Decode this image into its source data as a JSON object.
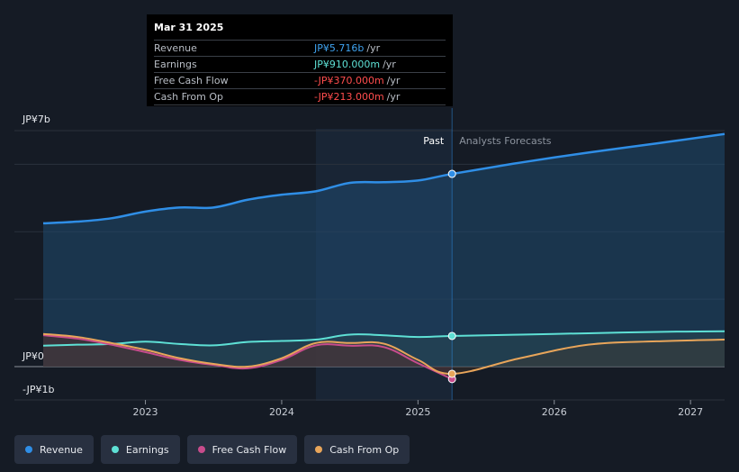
{
  "tooltip": {
    "date": "Mar 31 2025",
    "rows": [
      {
        "label": "Revenue",
        "value": "JP¥5.716b",
        "unit": "/yr",
        "color": "#3fa3f0"
      },
      {
        "label": "Earnings",
        "value": "JP¥910.000m",
        "unit": "/yr",
        "color": "#5ee0d5"
      },
      {
        "label": "Free Cash Flow",
        "value": "-JP¥370.000m",
        "unit": "/yr",
        "color": "#ff4d4d"
      },
      {
        "label": "Cash From Op",
        "value": "-JP¥213.000m",
        "unit": "/yr",
        "color": "#ff4d4d"
      }
    ]
  },
  "legend": [
    {
      "label": "Revenue",
      "color": "#2f8ee6"
    },
    {
      "label": "Earnings",
      "color": "#5ee0d5"
    },
    {
      "label": "Free Cash Flow",
      "color": "#c84c8c"
    },
    {
      "label": "Cash From Op",
      "color": "#e8a55a"
    }
  ],
  "chart_data": {
    "type": "line",
    "title": "",
    "units": "JP¥ billions",
    "ylim": [
      -1,
      7
    ],
    "y_tick_labels": [
      {
        "value": 7,
        "label": "JP¥7b"
      },
      {
        "value": 0,
        "label": "JP¥0"
      },
      {
        "value": -1,
        "label": "-JP¥1b"
      }
    ],
    "x_range": [
      2022.25,
      2027.25
    ],
    "x_ticks": [
      2023,
      2024,
      2025,
      2026,
      2027
    ],
    "past_label": "Past",
    "forecast_label": "Analysts Forecasts",
    "past_start": 2024.25,
    "divider_x": 2025.25,
    "series": [
      {
        "name": "Revenue",
        "color": "#2f8ee6",
        "x": [
          2022.25,
          2022.5,
          2022.75,
          2023.0,
          2023.25,
          2023.5,
          2023.75,
          2024.0,
          2024.25,
          2024.5,
          2024.75,
          2025.0,
          2025.25,
          2025.75,
          2026.25,
          2026.75,
          2027.25
        ],
        "values": [
          4.25,
          4.3,
          4.4,
          4.6,
          4.72,
          4.72,
          4.95,
          5.1,
          5.2,
          5.45,
          5.47,
          5.52,
          5.716,
          6.05,
          6.35,
          6.62,
          6.9
        ]
      },
      {
        "name": "Earnings",
        "color": "#5ee0d5",
        "x": [
          2022.25,
          2022.5,
          2022.75,
          2023.0,
          2023.25,
          2023.5,
          2023.75,
          2024.0,
          2024.25,
          2024.5,
          2024.75,
          2025.0,
          2025.25,
          2025.75,
          2026.25,
          2026.75,
          2027.25
        ],
        "values": [
          0.62,
          0.65,
          0.67,
          0.74,
          0.67,
          0.63,
          0.73,
          0.76,
          0.8,
          0.95,
          0.93,
          0.88,
          0.91,
          0.95,
          0.99,
          1.03,
          1.05
        ]
      },
      {
        "name": "Free Cash Flow",
        "color": "#c84c8c",
        "x": [
          2022.25,
          2022.5,
          2022.75,
          2023.0,
          2023.25,
          2023.5,
          2023.75,
          2024.0,
          2024.25,
          2024.5,
          2024.75,
          2025.0,
          2025.25
        ],
        "values": [
          0.93,
          0.83,
          0.65,
          0.43,
          0.2,
          0.05,
          -0.05,
          0.2,
          0.63,
          0.62,
          0.58,
          0.1,
          -0.37
        ]
      },
      {
        "name": "Cash From Op",
        "color": "#e8a55a",
        "x": [
          2022.25,
          2022.5,
          2022.75,
          2023.0,
          2023.25,
          2023.5,
          2023.75,
          2024.0,
          2024.25,
          2024.5,
          2024.75,
          2025.0,
          2025.25,
          2025.75,
          2026.25,
          2026.75,
          2027.25
        ],
        "values": [
          0.97,
          0.88,
          0.7,
          0.5,
          0.25,
          0.08,
          0.0,
          0.25,
          0.7,
          0.7,
          0.68,
          0.2,
          -0.213,
          0.25,
          0.65,
          0.75,
          0.8
        ]
      }
    ]
  }
}
